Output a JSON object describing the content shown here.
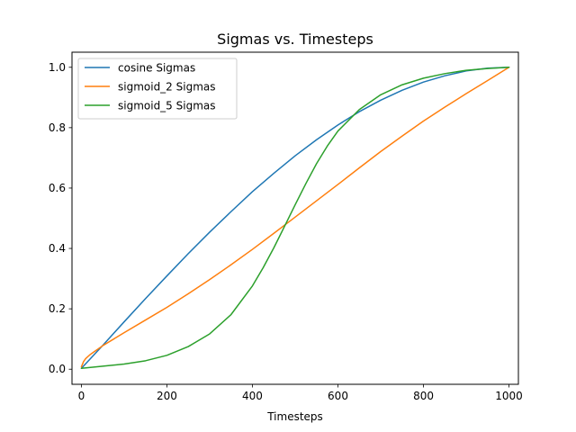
{
  "chart_data": {
    "type": "line",
    "title": "Sigmas vs. Timesteps",
    "xlabel": "Timesteps",
    "ylabel": "",
    "xlim": [
      -22,
      1022
    ],
    "ylim": [
      -0.05,
      1.05
    ],
    "xticks": [
      0,
      200,
      400,
      600,
      800,
      1000
    ],
    "yticks": [
      0.0,
      0.2,
      0.4,
      0.6,
      0.8,
      1.0
    ],
    "xtick_labels": [
      "0",
      "200",
      "400",
      "600",
      "800",
      "1000"
    ],
    "ytick_labels": [
      "0.0",
      "0.2",
      "0.4",
      "0.6",
      "0.8",
      "1.0"
    ],
    "grid": false,
    "legend_position": "top-left",
    "series": [
      {
        "name": "cosine Sigmas",
        "color": "#1f77b4",
        "x": [
          0,
          50,
          100,
          150,
          200,
          250,
          300,
          350,
          400,
          450,
          500,
          550,
          600,
          650,
          700,
          750,
          800,
          850,
          900,
          950,
          1000
        ],
        "y": [
          0.003,
          0.079,
          0.157,
          0.234,
          0.309,
          0.383,
          0.454,
          0.522,
          0.588,
          0.649,
          0.707,
          0.76,
          0.809,
          0.853,
          0.891,
          0.924,
          0.951,
          0.972,
          0.988,
          0.997,
          1.0
        ]
      },
      {
        "name": "sigmoid_2 Sigmas",
        "color": "#ff7f0e",
        "x": [
          0,
          5,
          10,
          20,
          30,
          50,
          100,
          150,
          200,
          250,
          300,
          350,
          400,
          450,
          500,
          550,
          600,
          650,
          700,
          750,
          800,
          850,
          900,
          950,
          1000
        ],
        "y": [
          0.008,
          0.025,
          0.035,
          0.048,
          0.058,
          0.078,
          0.121,
          0.163,
          0.205,
          0.25,
          0.297,
          0.346,
          0.397,
          0.45,
          0.504,
          0.558,
          0.612,
          0.667,
          0.721,
          0.772,
          0.822,
          0.868,
          0.913,
          0.956,
          1.0
        ]
      },
      {
        "name": "sigmoid_5 Sigmas",
        "color": "#2ca02c",
        "x": [
          0,
          50,
          100,
          150,
          200,
          250,
          300,
          350,
          400,
          425,
          450,
          475,
          500,
          525,
          550,
          575,
          600,
          650,
          700,
          750,
          800,
          850,
          900,
          950,
          1000
        ],
        "y": [
          0.003,
          0.01,
          0.017,
          0.028,
          0.046,
          0.075,
          0.117,
          0.181,
          0.276,
          0.336,
          0.402,
          0.473,
          0.545,
          0.615,
          0.681,
          0.739,
          0.789,
          0.86,
          0.909,
          0.942,
          0.964,
          0.979,
          0.99,
          0.996,
          1.0
        ]
      }
    ]
  }
}
